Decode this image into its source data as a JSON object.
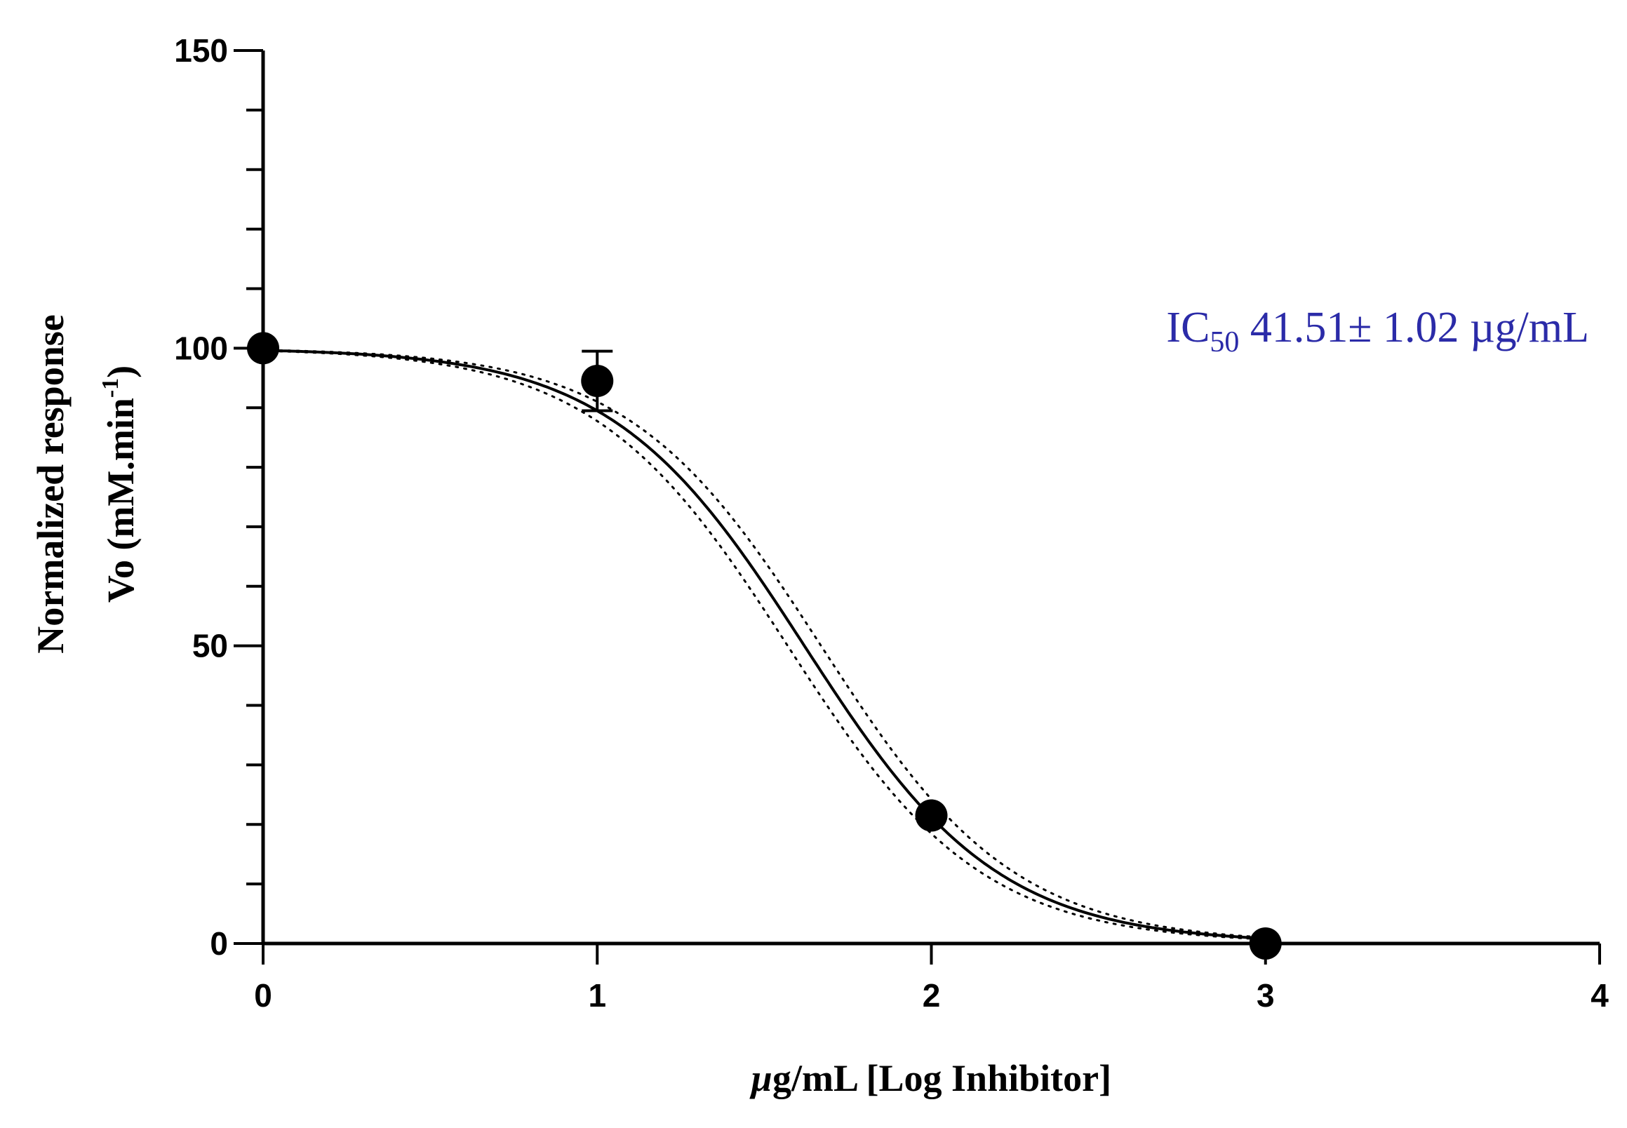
{
  "chart_data": {
    "type": "scatter",
    "xlabel": {
      "prefix": "µ",
      "rest": "g/mL [Log Inhibitor]"
    },
    "ylabel": {
      "line1": "Normalized response",
      "line2_main": "Vo (mM.min",
      "line2_sup": "-1",
      "line2_end": ")"
    },
    "xlim": [
      0,
      4
    ],
    "ylim": [
      0,
      150
    ],
    "x_ticks": [
      "0",
      "1",
      "2",
      "3",
      "4"
    ],
    "y_ticks": [
      "0",
      "50",
      "100",
      "150"
    ],
    "grid": false,
    "points": {
      "x": [
        0,
        1,
        2,
        3
      ],
      "y": [
        100,
        94.5,
        21.5,
        0
      ],
      "error": [
        0,
        5,
        0,
        0
      ]
    },
    "fit": {
      "model": "normalized response vs log inhibitor, variable slope",
      "logIC50": 1.62,
      "hill_slope": -1.5
    },
    "confidence_band": {
      "logIC50_lower": 1.57,
      "logIC50_upper": 1.67
    },
    "annotation": {
      "prefix": "IC",
      "sub": "50",
      "text": " 41.51± 1.02 µg/mL",
      "color": "#2b2ba8"
    }
  }
}
